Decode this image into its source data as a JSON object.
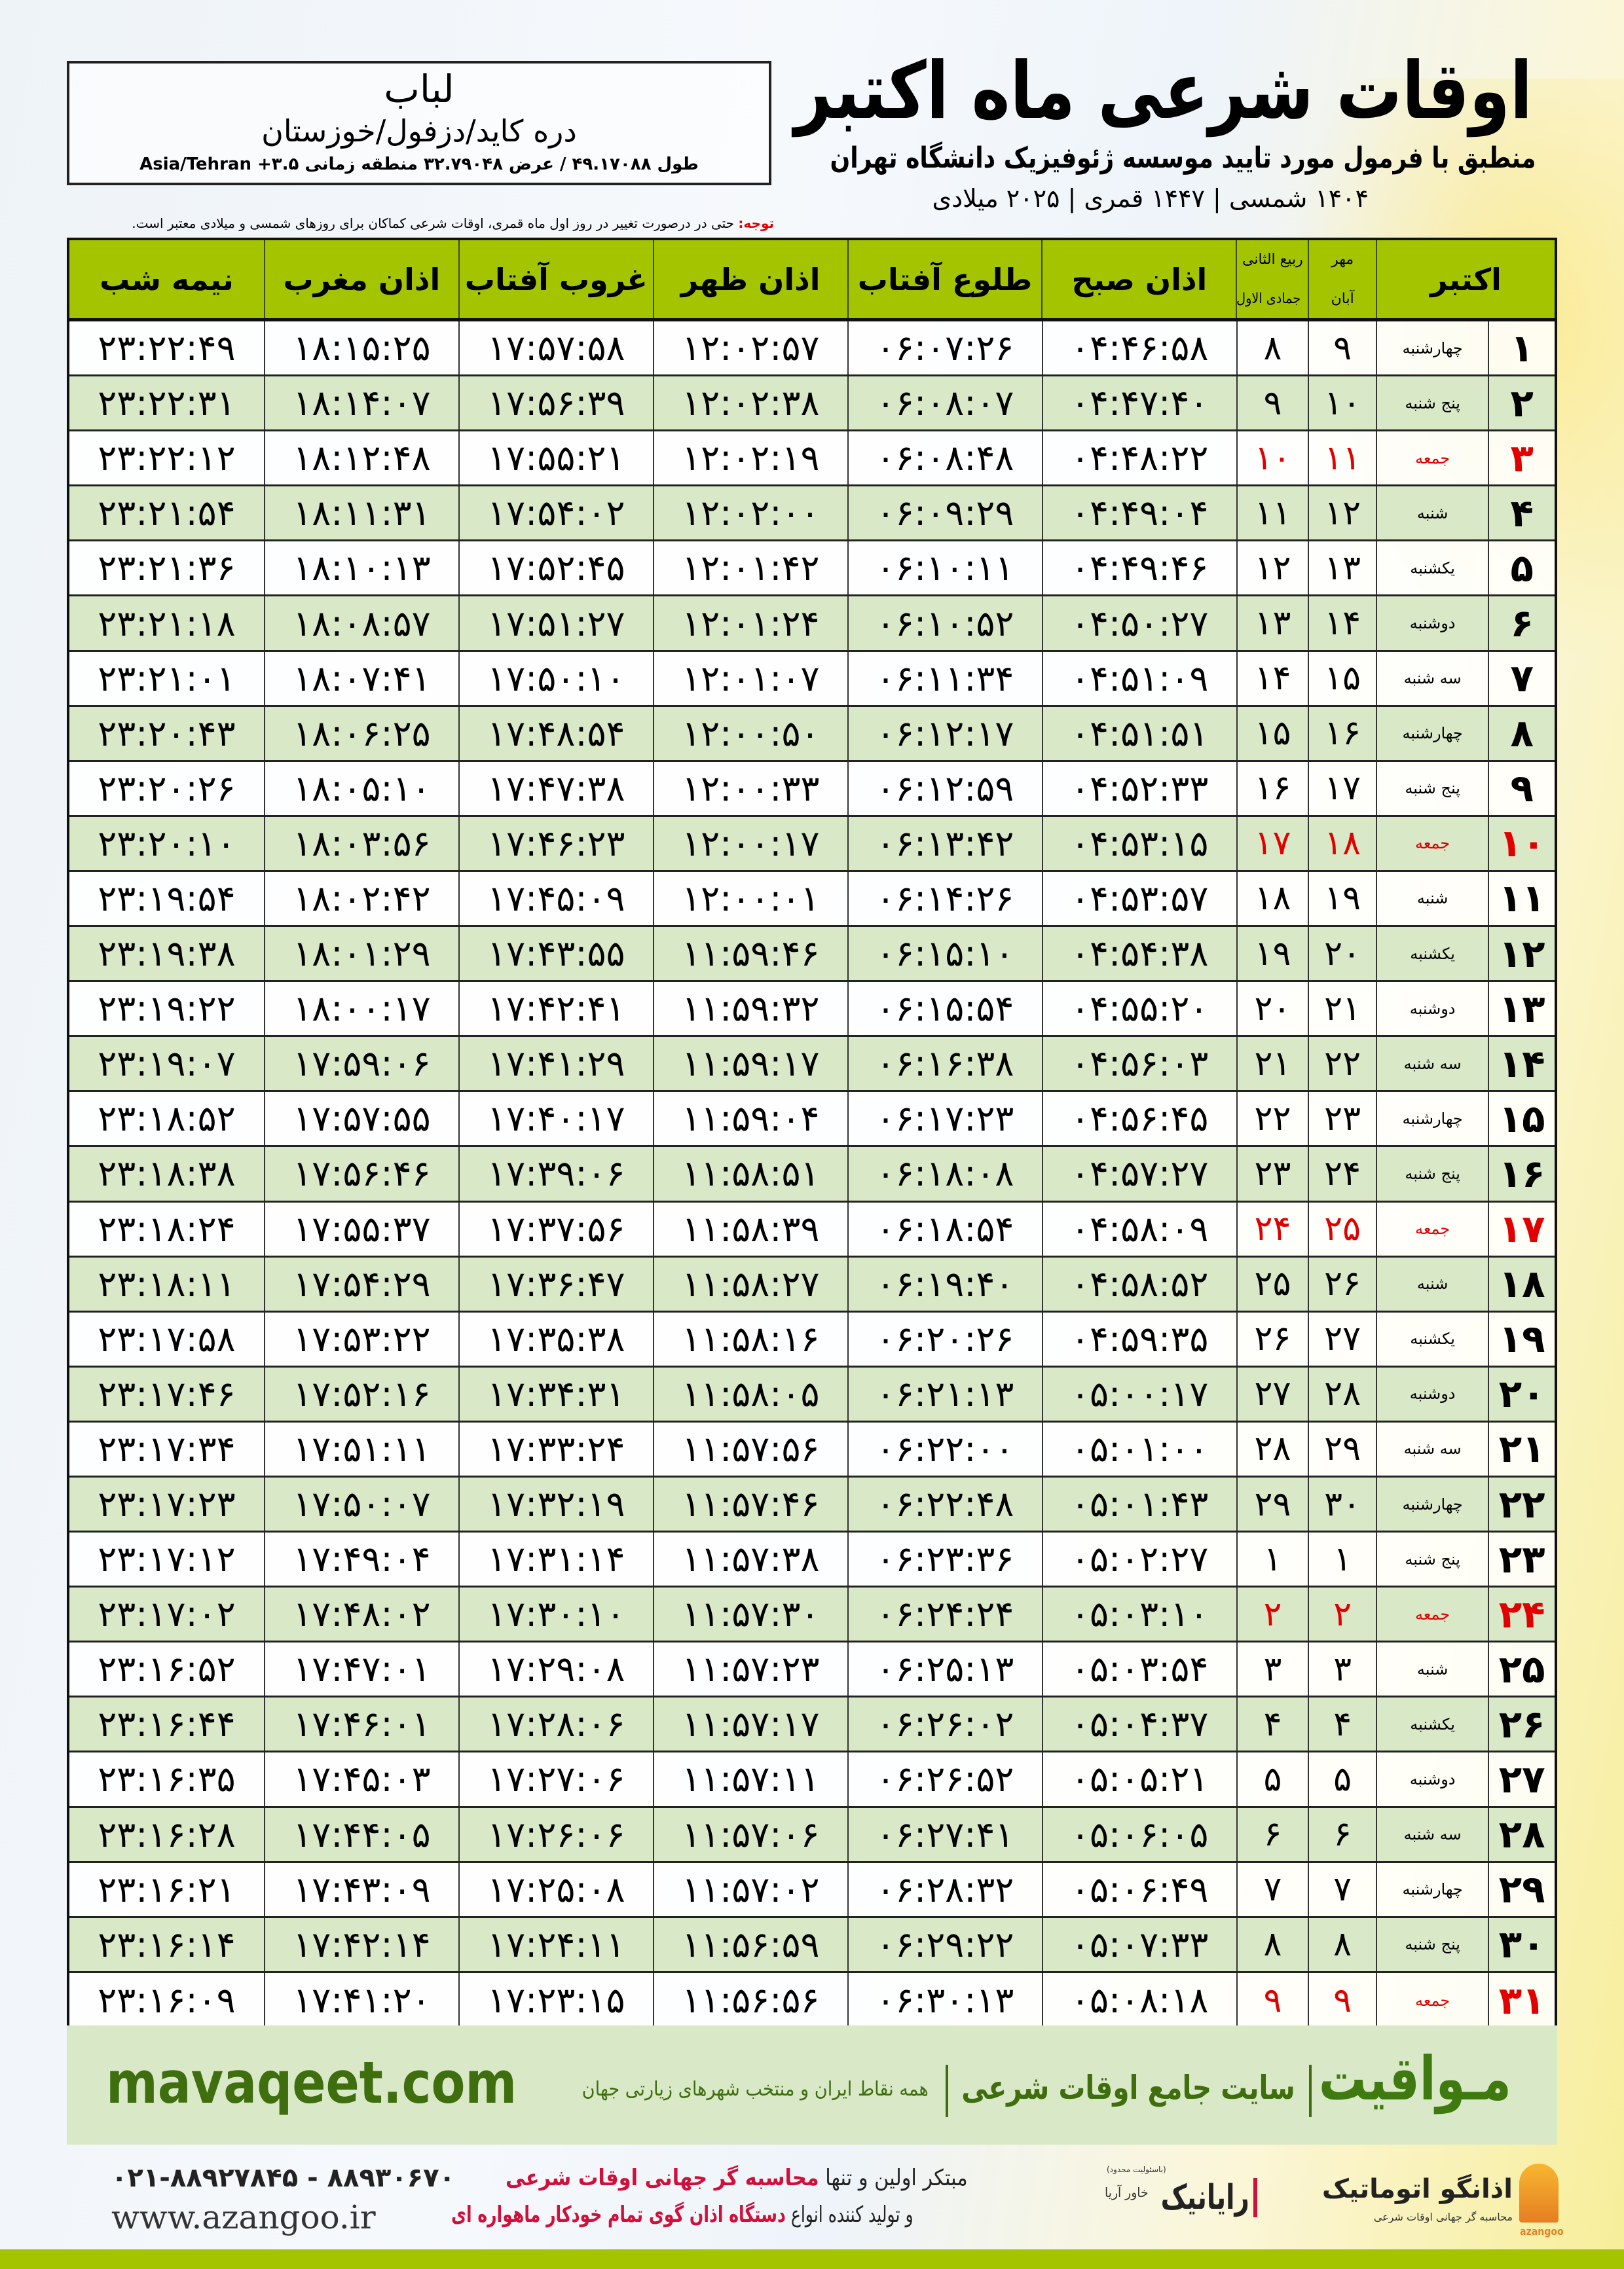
{
  "location": {
    "name": "لباب",
    "path": "دره کاید/دزفول/خوزستان",
    "coords": "طول ۴۹.۱۷۰۸۸ / عرض ۳۲.۷۹۰۴۸ منطقه زمانی Asia/Tehran +۳.۵"
  },
  "header": {
    "title": "اوقات شرعی ماه اکتبر",
    "subtitle": "منطبق با فرمول مورد تایید موسسه ژئوفیزیک دانشگاه تهران",
    "years": "۱۴۰۴ شمسی | ۱۴۴۷ قمری | ۲۰۲۵ میلادی"
  },
  "note": {
    "label": "توجه:",
    "text": " حتی در درصورت تغییر در روز اول ماه قمری، اوقات شرعی کماکان برای روزهای شمسی و میلادی معتبر است."
  },
  "columns": {
    "month": "اکتبر",
    "shamsi_top": "مهر",
    "shamsi_bottom": "آبان",
    "qamari_top": "ربیع الثانی",
    "qamari_bottom": "جمادی الاول",
    "fajr": "اذان صبح",
    "sunrise": "طلوع آفتاب",
    "dhuhr": "اذان ظهر",
    "sunset": "غروب آفتاب",
    "maghrib": "اذان مغرب",
    "midnight": "نیمه شب"
  },
  "colors": {
    "header_green": "#a4c400",
    "row_green": "#d9e8c6",
    "friday_red": "#e00000",
    "brand_green": "#3f6e0f"
  },
  "rows": [
    [
      "۱",
      "چهارشنبه",
      "۹",
      "۸",
      "۰۴:۴۶:۵۸",
      "۰۶:۰۷:۲۶",
      "۱۲:۰۲:۵۷",
      "۱۷:۵۷:۵۸",
      "۱۸:۱۵:۲۵",
      "۲۳:۲۲:۴۹"
    ],
    [
      "۲",
      "پنج شنبه",
      "۱۰",
      "۹",
      "۰۴:۴۷:۴۰",
      "۰۶:۰۸:۰۷",
      "۱۲:۰۲:۳۸",
      "۱۷:۵۶:۳۹",
      "۱۸:۱۴:۰۷",
      "۲۳:۲۲:۳۱"
    ],
    [
      "۳",
      "جمعه",
      "۱۱",
      "۱۰",
      "۰۴:۴۸:۲۲",
      "۰۶:۰۸:۴۸",
      "۱۲:۰۲:۱۹",
      "۱۷:۵۵:۲۱",
      "۱۸:۱۲:۴۸",
      "۲۳:۲۲:۱۲"
    ],
    [
      "۴",
      "شنبه",
      "۱۲",
      "۱۱",
      "۰۴:۴۹:۰۴",
      "۰۶:۰۹:۲۹",
      "۱۲:۰۲:۰۰",
      "۱۷:۵۴:۰۲",
      "۱۸:۱۱:۳۱",
      "۲۳:۲۱:۵۴"
    ],
    [
      "۵",
      "یکشنبه",
      "۱۳",
      "۱۲",
      "۰۴:۴۹:۴۶",
      "۰۶:۱۰:۱۱",
      "۱۲:۰۱:۴۲",
      "۱۷:۵۲:۴۵",
      "۱۸:۱۰:۱۳",
      "۲۳:۲۱:۳۶"
    ],
    [
      "۶",
      "دوشنبه",
      "۱۴",
      "۱۳",
      "۰۴:۵۰:۲۷",
      "۰۶:۱۰:۵۲",
      "۱۲:۰۱:۲۴",
      "۱۷:۵۱:۲۷",
      "۱۸:۰۸:۵۷",
      "۲۳:۲۱:۱۸"
    ],
    [
      "۷",
      "سه شنبه",
      "۱۵",
      "۱۴",
      "۰۴:۵۱:۰۹",
      "۰۶:۱۱:۳۴",
      "۱۲:۰۱:۰۷",
      "۱۷:۵۰:۱۰",
      "۱۸:۰۷:۴۱",
      "۲۳:۲۱:۰۱"
    ],
    [
      "۸",
      "چهارشنبه",
      "۱۶",
      "۱۵",
      "۰۴:۵۱:۵۱",
      "۰۶:۱۲:۱۷",
      "۱۲:۰۰:۵۰",
      "۱۷:۴۸:۵۴",
      "۱۸:۰۶:۲۵",
      "۲۳:۲۰:۴۳"
    ],
    [
      "۹",
      "پنج شنبه",
      "۱۷",
      "۱۶",
      "۰۴:۵۲:۳۳",
      "۰۶:۱۲:۵۹",
      "۱۲:۰۰:۳۳",
      "۱۷:۴۷:۳۸",
      "۱۸:۰۵:۱۰",
      "۲۳:۲۰:۲۶"
    ],
    [
      "۱۰",
      "جمعه",
      "۱۸",
      "۱۷",
      "۰۴:۵۳:۱۵",
      "۰۶:۱۳:۴۲",
      "۱۲:۰۰:۱۷",
      "۱۷:۴۶:۲۳",
      "۱۸:۰۳:۵۶",
      "۲۳:۲۰:۱۰"
    ],
    [
      "۱۱",
      "شنبه",
      "۱۹",
      "۱۸",
      "۰۴:۵۳:۵۷",
      "۰۶:۱۴:۲۶",
      "۱۲:۰۰:۰۱",
      "۱۷:۴۵:۰۹",
      "۱۸:۰۲:۴۲",
      "۲۳:۱۹:۵۴"
    ],
    [
      "۱۲",
      "یکشنبه",
      "۲۰",
      "۱۹",
      "۰۴:۵۴:۳۸",
      "۰۶:۱۵:۱۰",
      "۱۱:۵۹:۴۶",
      "۱۷:۴۳:۵۵",
      "۱۸:۰۱:۲۹",
      "۲۳:۱۹:۳۸"
    ],
    [
      "۱۳",
      "دوشنبه",
      "۲۱",
      "۲۰",
      "۰۴:۵۵:۲۰",
      "۰۶:۱۵:۵۴",
      "۱۱:۵۹:۳۲",
      "۱۷:۴۲:۴۱",
      "۱۸:۰۰:۱۷",
      "۲۳:۱۹:۲۲"
    ],
    [
      "۱۴",
      "سه شنبه",
      "۲۲",
      "۲۱",
      "۰۴:۵۶:۰۳",
      "۰۶:۱۶:۳۸",
      "۱۱:۵۹:۱۷",
      "۱۷:۴۱:۲۹",
      "۱۷:۵۹:۰۶",
      "۲۳:۱۹:۰۷"
    ],
    [
      "۱۵",
      "چهارشنبه",
      "۲۳",
      "۲۲",
      "۰۴:۵۶:۴۵",
      "۰۶:۱۷:۲۳",
      "۱۱:۵۹:۰۴",
      "۱۷:۴۰:۱۷",
      "۱۷:۵۷:۵۵",
      "۲۳:۱۸:۵۲"
    ],
    [
      "۱۶",
      "پنج شنبه",
      "۲۴",
      "۲۳",
      "۰۴:۵۷:۲۷",
      "۰۶:۱۸:۰۸",
      "۱۱:۵۸:۵۱",
      "۱۷:۳۹:۰۶",
      "۱۷:۵۶:۴۶",
      "۲۳:۱۸:۳۸"
    ],
    [
      "۱۷",
      "جمعه",
      "۲۵",
      "۲۴",
      "۰۴:۵۸:۰۹",
      "۰۶:۱۸:۵۴",
      "۱۱:۵۸:۳۹",
      "۱۷:۳۷:۵۶",
      "۱۷:۵۵:۳۷",
      "۲۳:۱۸:۲۴"
    ],
    [
      "۱۸",
      "شنبه",
      "۲۶",
      "۲۵",
      "۰۴:۵۸:۵۲",
      "۰۶:۱۹:۴۰",
      "۱۱:۵۸:۲۷",
      "۱۷:۳۶:۴۷",
      "۱۷:۵۴:۲۹",
      "۲۳:۱۸:۱۱"
    ],
    [
      "۱۹",
      "یکشنبه",
      "۲۷",
      "۲۶",
      "۰۴:۵۹:۳۵",
      "۰۶:۲۰:۲۶",
      "۱۱:۵۸:۱۶",
      "۱۷:۳۵:۳۸",
      "۱۷:۵۳:۲۲",
      "۲۳:۱۷:۵۸"
    ],
    [
      "۲۰",
      "دوشنبه",
      "۲۸",
      "۲۷",
      "۰۵:۰۰:۱۷",
      "۰۶:۲۱:۱۳",
      "۱۱:۵۸:۰۵",
      "۱۷:۳۴:۳۱",
      "۱۷:۵۲:۱۶",
      "۲۳:۱۷:۴۶"
    ],
    [
      "۲۱",
      "سه شنبه",
      "۲۹",
      "۲۸",
      "۰۵:۰۱:۰۰",
      "۰۶:۲۲:۰۰",
      "۱۱:۵۷:۵۶",
      "۱۷:۳۳:۲۴",
      "۱۷:۵۱:۱۱",
      "۲۳:۱۷:۳۴"
    ],
    [
      "۲۲",
      "چهارشنبه",
      "۳۰",
      "۲۹",
      "۰۵:۰۱:۴۳",
      "۰۶:۲۲:۴۸",
      "۱۱:۵۷:۴۶",
      "۱۷:۳۲:۱۹",
      "۱۷:۵۰:۰۷",
      "۲۳:۱۷:۲۳"
    ],
    [
      "۲۳",
      "پنج شنبه",
      "۱",
      "۱",
      "۰۵:۰۲:۲۷",
      "۰۶:۲۳:۳۶",
      "۱۱:۵۷:۳۸",
      "۱۷:۳۱:۱۴",
      "۱۷:۴۹:۰۴",
      "۲۳:۱۷:۱۲"
    ],
    [
      "۲۴",
      "جمعه",
      "۲",
      "۲",
      "۰۵:۰۳:۱۰",
      "۰۶:۲۴:۲۴",
      "۱۱:۵۷:۳۰",
      "۱۷:۳۰:۱۰",
      "۱۷:۴۸:۰۲",
      "۲۳:۱۷:۰۲"
    ],
    [
      "۲۵",
      "شنبه",
      "۳",
      "۳",
      "۰۵:۰۳:۵۴",
      "۰۶:۲۵:۱۳",
      "۱۱:۵۷:۲۳",
      "۱۷:۲۹:۰۸",
      "۱۷:۴۷:۰۱",
      "۲۳:۱۶:۵۲"
    ],
    [
      "۲۶",
      "یکشنبه",
      "۴",
      "۴",
      "۰۵:۰۴:۳۷",
      "۰۶:۲۶:۰۲",
      "۱۱:۵۷:۱۷",
      "۱۷:۲۸:۰۶",
      "۱۷:۴۶:۰۱",
      "۲۳:۱۶:۴۴"
    ],
    [
      "۲۷",
      "دوشنبه",
      "۵",
      "۵",
      "۰۵:۰۵:۲۱",
      "۰۶:۲۶:۵۲",
      "۱۱:۵۷:۱۱",
      "۱۷:۲۷:۰۶",
      "۱۷:۴۵:۰۳",
      "۲۳:۱۶:۳۵"
    ],
    [
      "۲۸",
      "سه شنبه",
      "۶",
      "۶",
      "۰۵:۰۶:۰۵",
      "۰۶:۲۷:۴۱",
      "۱۱:۵۷:۰۶",
      "۱۷:۲۶:۰۶",
      "۱۷:۴۴:۰۵",
      "۲۳:۱۶:۲۸"
    ],
    [
      "۲۹",
      "چهارشنبه",
      "۷",
      "۷",
      "۰۵:۰۶:۴۹",
      "۰۶:۲۸:۳۲",
      "۱۱:۵۷:۰۲",
      "۱۷:۲۵:۰۸",
      "۱۷:۴۳:۰۹",
      "۲۳:۱۶:۲۱"
    ],
    [
      "۳۰",
      "پنج شنبه",
      "۸",
      "۸",
      "۰۵:۰۷:۳۳",
      "۰۶:۲۹:۲۲",
      "۱۱:۵۶:۵۹",
      "۱۷:۲۴:۱۱",
      "۱۷:۴۲:۱۴",
      "۲۳:۱۶:۱۴"
    ],
    [
      "۳۱",
      "جمعه",
      "۹",
      "۹",
      "۰۵:۰۸:۱۸",
      "۰۶:۳۰:۱۳",
      "۱۱:۵۶:۵۶",
      "۱۷:۲۳:۱۵",
      "۱۷:۴۱:۲۰",
      "۲۳:۱۶:۰۹"
    ]
  ],
  "friday_label": "جمعه",
  "banner": {
    "logo": "مـواقیت",
    "slogan": "سایت جامع اوقات شرعی",
    "sub": "همه نقاط ایران و منتخب شهرهای زیارتی جهان",
    "url": "mavaqeet.com"
  },
  "footer": {
    "line1_a": "مبتکر اولین و تنها ",
    "line1_b": "محاسبه گر جهانی اوقات شرعی",
    "line2_a": "و تولید کننده انواع ",
    "line2_b": "دستگاه اذان گوی تمام خودکار ماهواره ای",
    "phone": "۰۲۱-۸۸۹۲۷۸۴۵ - ۸۸۹۳۰۶۷۰",
    "website": "www.azangoo.ir",
    "rayanik": "رایانیک",
    "rayanik_sub": "خاور آریا",
    "rayanik_tiny": "(باسئولیت محدود)",
    "azangoo_name": "اذانگو اتوماتیک",
    "azangoo_sub": "محاسبه گر جهانی اوقات شرعی",
    "azangoo_latin": "azangoo"
  }
}
